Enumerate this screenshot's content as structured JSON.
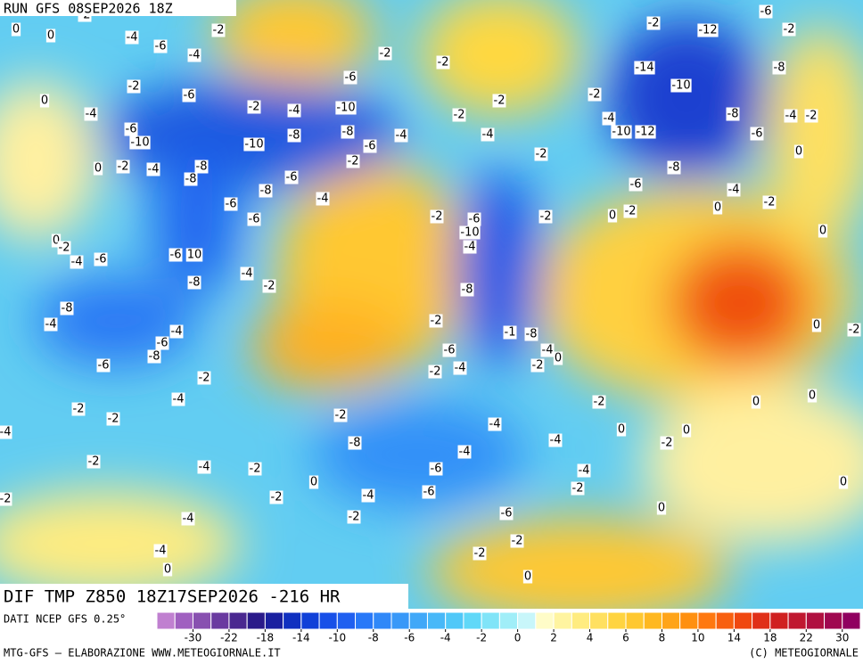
{
  "header": {
    "run": "RUN GFS 08SEP2026 18Z"
  },
  "map": {
    "contour_labels": [
      "-2",
      "0",
      "0",
      "-4",
      "-6",
      "-2",
      "-4",
      "-2",
      "0",
      "-4",
      "-6",
      "-6",
      "-10",
      "-2",
      "-4",
      "-10",
      "-6",
      "-2",
      "-2",
      "-2",
      "-2",
      "-8",
      "-8",
      "-6",
      "-4",
      "-4",
      "-10",
      "0",
      "-2",
      "-4",
      "-8",
      "-8",
      "-6",
      "-8",
      "-2",
      "-4",
      "-6",
      "-6",
      "-2",
      "-2",
      "-6",
      "-10",
      "-4",
      "-2",
      "0",
      "-2",
      "-4",
      "-6",
      "-6",
      "10",
      "-8",
      "-4",
      "-2",
      "-8",
      "-8",
      "-4",
      "-2",
      "-1",
      "-8",
      "-4",
      "-6",
      "-8",
      "-6",
      "-2",
      "-4",
      "-2",
      "0",
      "-6",
      "-2",
      "-4",
      "-4",
      "-2",
      "-2",
      "-2",
      "-8",
      "-4",
      "-4",
      "-4",
      "-2",
      "0",
      "-2",
      "0",
      "-2",
      "-4",
      "-2",
      "-6",
      "-4",
      "-2",
      "0",
      "-2",
      "-4",
      "-6",
      "-2",
      "-6",
      "-4",
      "-2",
      "-4",
      "-2",
      "0",
      "0",
      "-14",
      "-12",
      "-10",
      "-8",
      "-4",
      "-10",
      "-12",
      "-6",
      "-8",
      "-6",
      "-4",
      "-2",
      "0",
      "-2",
      "0",
      "-2",
      "-6",
      "-2",
      "-8",
      "-4",
      "-2",
      "0",
      "-2",
      "0",
      "0",
      "-2",
      "0",
      "0",
      "0",
      "0",
      "-4",
      "-2"
    ]
  },
  "footer": {
    "field": "DIF TMP Z850 18Z17SEP2026 -216 HR",
    "source": "DATI NCEP GFS 0.25°",
    "credits": "MTG-GFS — ELABORAZIONE WWW.METEOGIORNALE.IT",
    "copyright": "(C) METEOGIORNALE"
  },
  "colorbar": {
    "ticks": [
      -30,
      -22,
      -18,
      -14,
      -10,
      -8,
      -6,
      -4,
      -2,
      0,
      2,
      4,
      6,
      8,
      10,
      14,
      18,
      22,
      30
    ],
    "colors": [
      "#c080d0",
      "#a060c0",
      "#8850b0",
      "#6a3aa0",
      "#4a2890",
      "#2a1a8a",
      "#1a20a0",
      "#1030c0",
      "#1040d8",
      "#1850e8",
      "#2060f0",
      "#2878f8",
      "#3088f8",
      "#3898f8",
      "#40a8f8",
      "#48b8f8",
      "#50c8f8",
      "#60d8f8",
      "#80e4f8",
      "#a0eef8",
      "#c8f6fa",
      "#fffcc8",
      "#fff4a0",
      "#ffec80",
      "#ffe060",
      "#ffd440",
      "#ffc830",
      "#ffb820",
      "#ffa418",
      "#ff9010",
      "#ff7810",
      "#f86010",
      "#f04810",
      "#e03018",
      "#d02020",
      "#c01830",
      "#b01040",
      "#a00850",
      "#900060"
    ]
  }
}
